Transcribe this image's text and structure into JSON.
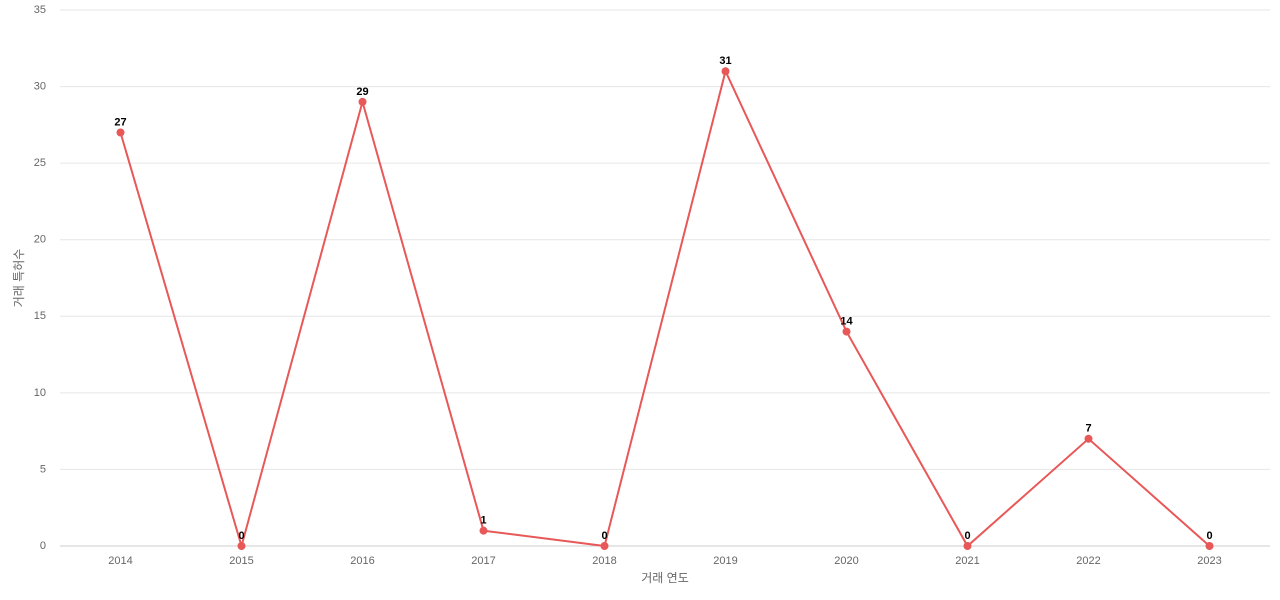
{
  "chart_data": {
    "type": "line",
    "x_label": "거래 연도",
    "y_label": "거래 특허수",
    "categories": [
      "2014",
      "2015",
      "2016",
      "2017",
      "2018",
      "2019",
      "2020",
      "2021",
      "2022",
      "2023"
    ],
    "series": [
      {
        "name": "거래 특허수",
        "color": "#e85858",
        "values": [
          27,
          0,
          29,
          1,
          0,
          31,
          14,
          0,
          7,
          0
        ]
      }
    ],
    "ylim": [
      0,
      35
    ],
    "yticks": [
      0,
      5,
      10,
      15,
      20,
      25,
      30,
      35
    ],
    "grid": true,
    "legend": false
  }
}
